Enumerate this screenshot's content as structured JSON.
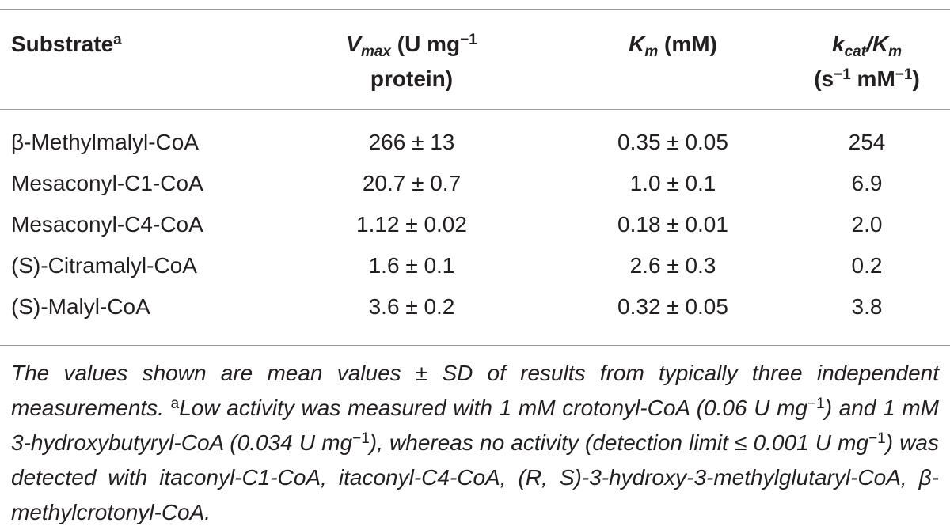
{
  "header": {
    "substrate": "Substrate",
    "substrate_sup": "a",
    "vmax_symbol": "V",
    "vmax_sub": "max",
    "vmax_unit_a": " (U mg",
    "vmax_unit_sup": "−1",
    "vmax_unit_b": "protein)",
    "km_symbol": "K",
    "km_sub": "m",
    "km_unit": " (mM)",
    "kcat_symbol": "k",
    "kcat_sub": "cat",
    "kcat_slash": "/K",
    "kcat_sub2": "m",
    "kcat_unit_a": "(s",
    "kcat_unit_sup1": "−1",
    "kcat_unit_b": " mM",
    "kcat_unit_sup2": "−1",
    "kcat_unit_c": ")"
  },
  "rows": [
    {
      "substrate": "β-Methylmalyl-CoA",
      "vmax": "266 ± 13",
      "km": "0.35 ± 0.05",
      "kcat_km": "254"
    },
    {
      "substrate": "Mesaconyl-C1-CoA",
      "vmax": "20.7 ± 0.7",
      "km": "1.0 ± 0.1",
      "kcat_km": "6.9"
    },
    {
      "substrate": "Mesaconyl-C4-CoA",
      "vmax": "1.12 ± 0.02",
      "km": "0.18 ± 0.01",
      "kcat_km": "2.0"
    },
    {
      "substrate": "(S)-Citramalyl-CoA",
      "vmax": "1.6 ± 0.1",
      "km": "2.6 ± 0.3",
      "kcat_km": "0.2"
    },
    {
      "substrate": "(S)-Malyl-CoA",
      "vmax": "3.6 ± 0.2",
      "km": "0.32 ± 0.05",
      "kcat_km": "3.8"
    }
  ],
  "footnote": {
    "part1": "The values shown are mean values ± SD of results from typically three independent measurements. ",
    "sup_a": "a",
    "part2": "Low activity was measured with 1 mM crotonyl-CoA (0.06 U mg",
    "sup1": "−1",
    "part3": ") and 1 mM 3-hydroxybutyryl-CoA (0.034 U mg",
    "sup2": "−1",
    "part4": "), whereas no activity (detection limit ≤ 0.001 U mg",
    "sup3": "−1",
    "part5": ") was detected with itaconyl-C1-CoA, itaconyl-C4-CoA, (R, S)-3-hydroxy-3-methylglutaryl-CoA, β-methylcrotonyl-CoA."
  }
}
